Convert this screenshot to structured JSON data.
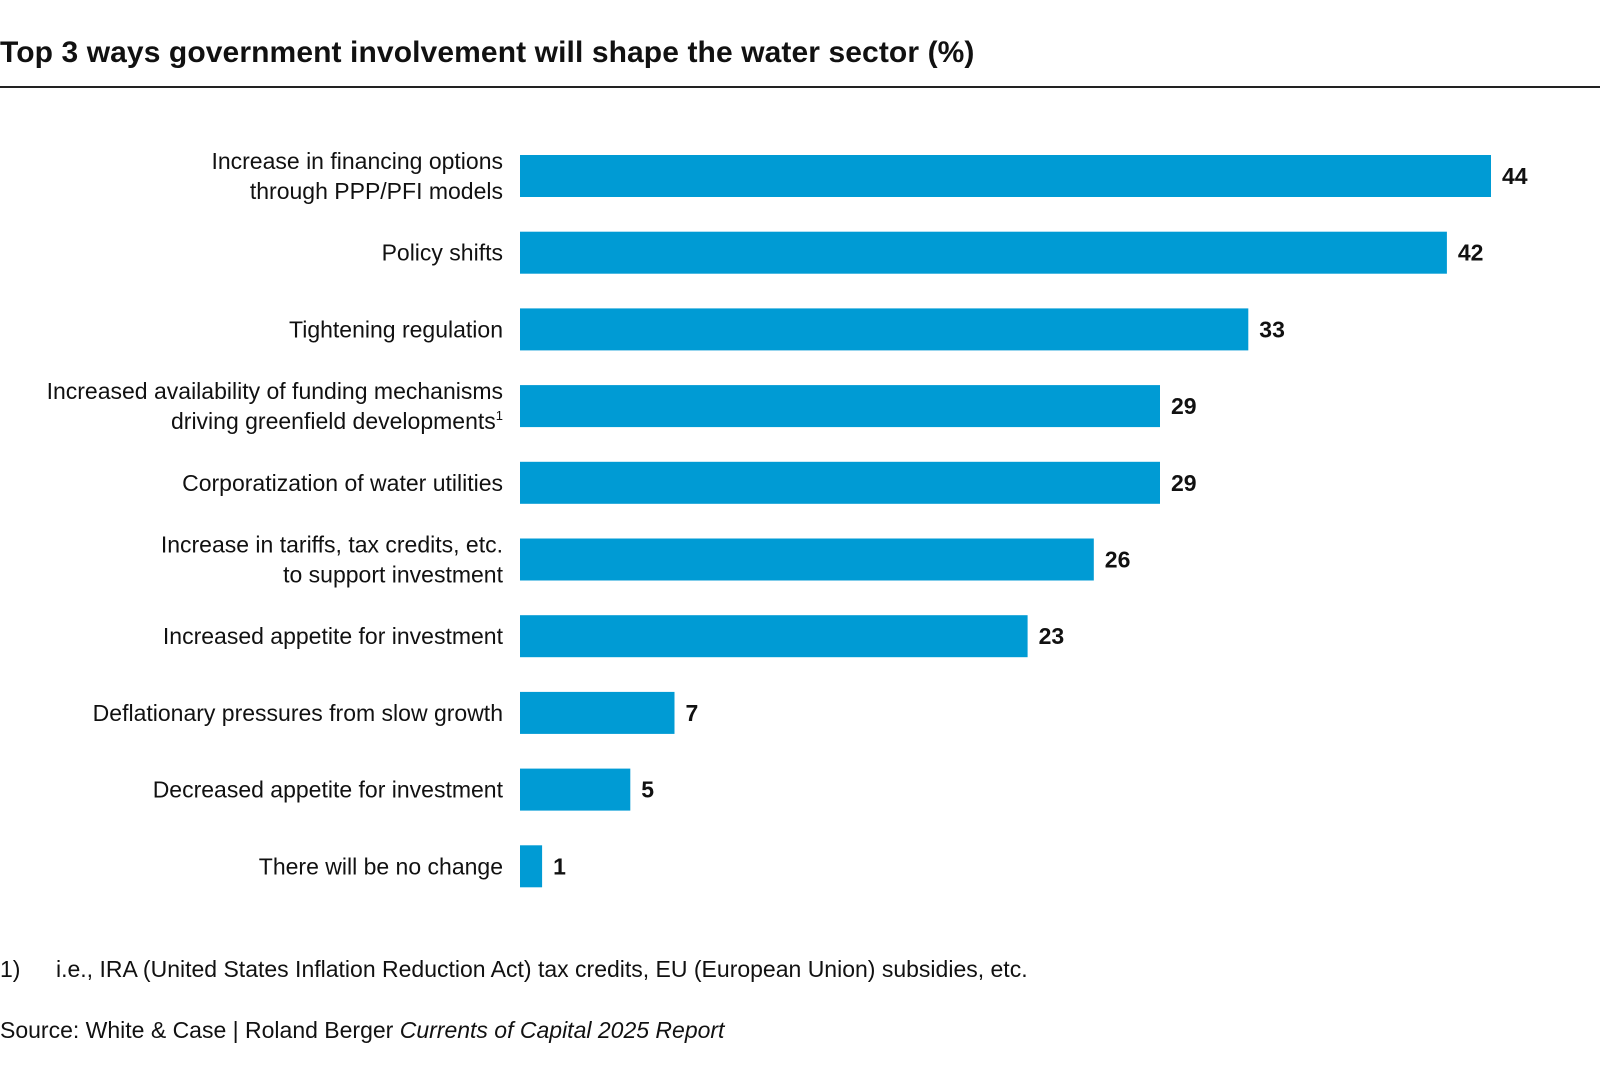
{
  "chart_data": {
    "type": "bar",
    "orientation": "horizontal",
    "title": "Top 3 ways government involvement will shape the water sector (%)",
    "categories": [
      [
        "Increase in financing options",
        "through PPP/PFI models"
      ],
      [
        "Policy shifts"
      ],
      [
        "Tightening regulation"
      ],
      [
        "Increased availability of funding mechanisms",
        "driving greenfield developments"
      ],
      [
        "Corporatization of water utilities"
      ],
      [
        "Increase in tariffs, tax credits, etc.",
        "to support investment"
      ],
      [
        "Increased appetite for investment"
      ],
      [
        "Deflationary pressures from slow growth"
      ],
      [
        "Decreased appetite for investment"
      ],
      [
        "There will be no change"
      ]
    ],
    "category_superscripts": [
      "",
      "",
      "",
      "1",
      "",
      "",
      "",
      "",
      "",
      ""
    ],
    "values": [
      44,
      42,
      33,
      29,
      29,
      26,
      23,
      7,
      5,
      1
    ],
    "xlim": [
      0,
      44
    ],
    "bar_color": "#009BD4",
    "xlabel": "",
    "ylabel": "",
    "grid": false
  },
  "footnote": {
    "marker": "1)",
    "text": "i.e., IRA (United States Inflation Reduction Act) tax credits, EU (European Union) subsidies, etc."
  },
  "source": {
    "prefix": "Source: White & Case | Roland Berger ",
    "italic": "Currents of Capital 2025 Report"
  }
}
